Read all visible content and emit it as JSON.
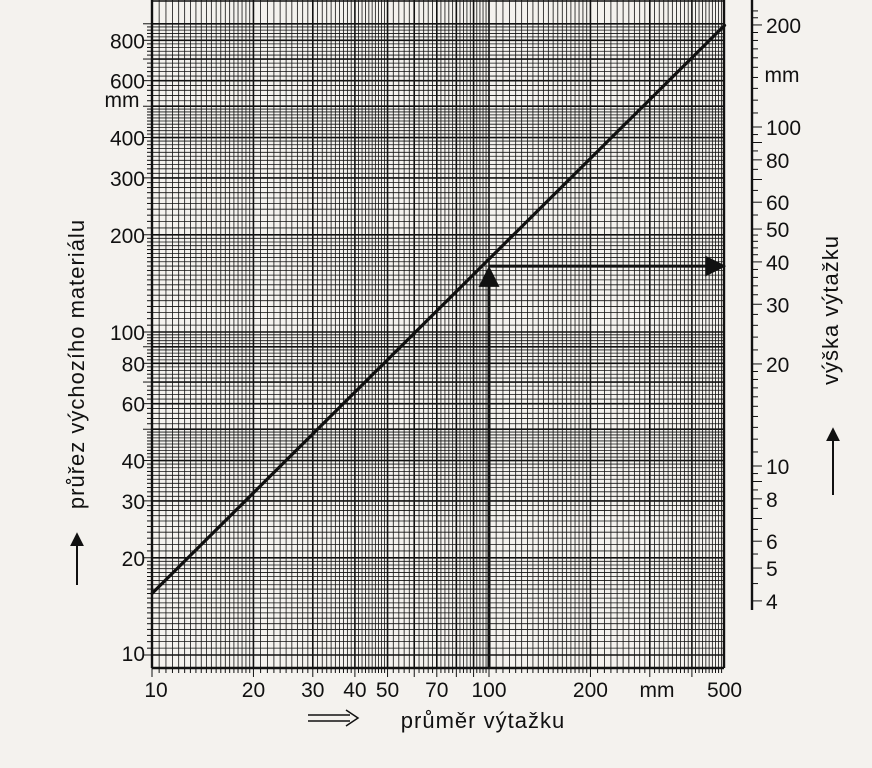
{
  "chart_data": {
    "type": "line",
    "x_axis": {
      "label": "průměr výtažku",
      "unit": "mm",
      "scale": "log",
      "range": [
        10,
        500
      ],
      "tick_labels": [
        "10",
        "20",
        "30",
        "40",
        "50",
        "70",
        "100",
        "200",
        "500"
      ]
    },
    "y_axis_left": {
      "label": "průřez výchozího materiálu",
      "unit": "mm",
      "scale": "log",
      "range": [
        10,
        900
      ],
      "tick_labels": [
        "10",
        "20",
        "30",
        "40",
        "60",
        "80",
        "100",
        "200",
        "300",
        "400",
        "600",
        "800"
      ]
    },
    "y_axis_right": {
      "label": "výška výtažku",
      "unit": "mm",
      "scale": "log",
      "range": [
        4,
        220
      ],
      "tick_labels": [
        "4",
        "5",
        "6",
        "8",
        "10",
        "20",
        "30",
        "40",
        "50",
        "60",
        "80",
        "100",
        "200"
      ]
    },
    "series": [
      {
        "points": [
          {
            "x": 10,
            "y": 15.5
          },
          {
            "x": 500,
            "y": 890
          }
        ]
      }
    ],
    "example": {
      "x": 100,
      "y": 160,
      "right_axis_value": 44
    },
    "grid": true
  },
  "colors": {
    "background": "#f4f2ee",
    "ink": "#111111"
  }
}
